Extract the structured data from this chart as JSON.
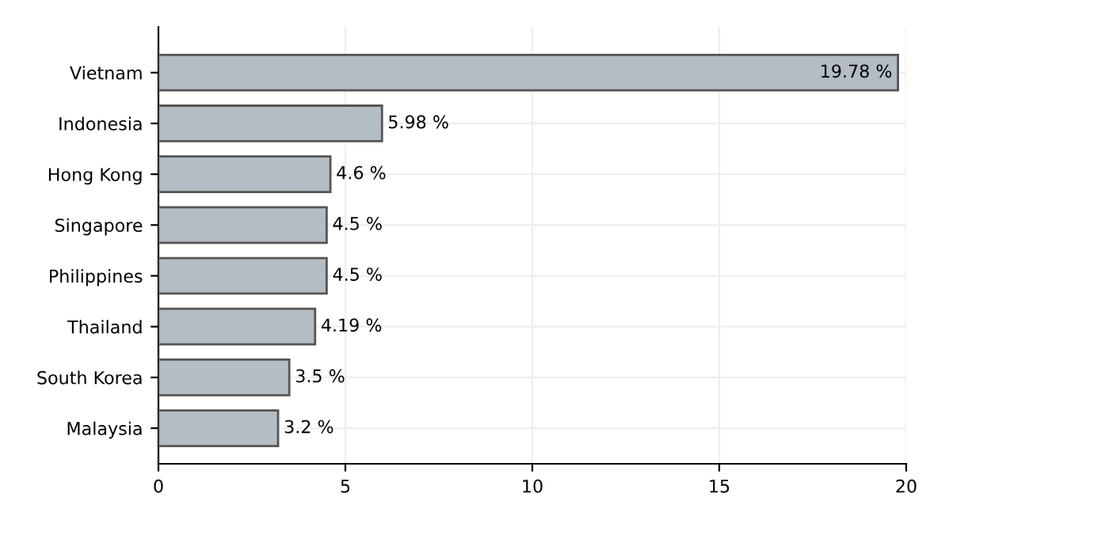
{
  "chart_data": {
    "type": "bar",
    "orientation": "horizontal",
    "categories": [
      "Vietnam",
      "Indonesia",
      "Hong Kong",
      "Singapore",
      "Philippines",
      "Thailand",
      "South Korea",
      "Malaysia"
    ],
    "values": [
      19.78,
      5.98,
      4.6,
      4.5,
      4.5,
      4.19,
      3.5,
      3.2
    ],
    "value_labels": [
      "19.78 %",
      "5.98 %",
      "4.6 %",
      "4.5 %",
      "4.5 %",
      "4.19 %",
      "3.5 %",
      "3.2 %"
    ],
    "color": "#b4bcc4",
    "xlim": [
      0,
      20
    ],
    "xticks": [
      0,
      5,
      10,
      15,
      20
    ],
    "grid": true
  }
}
